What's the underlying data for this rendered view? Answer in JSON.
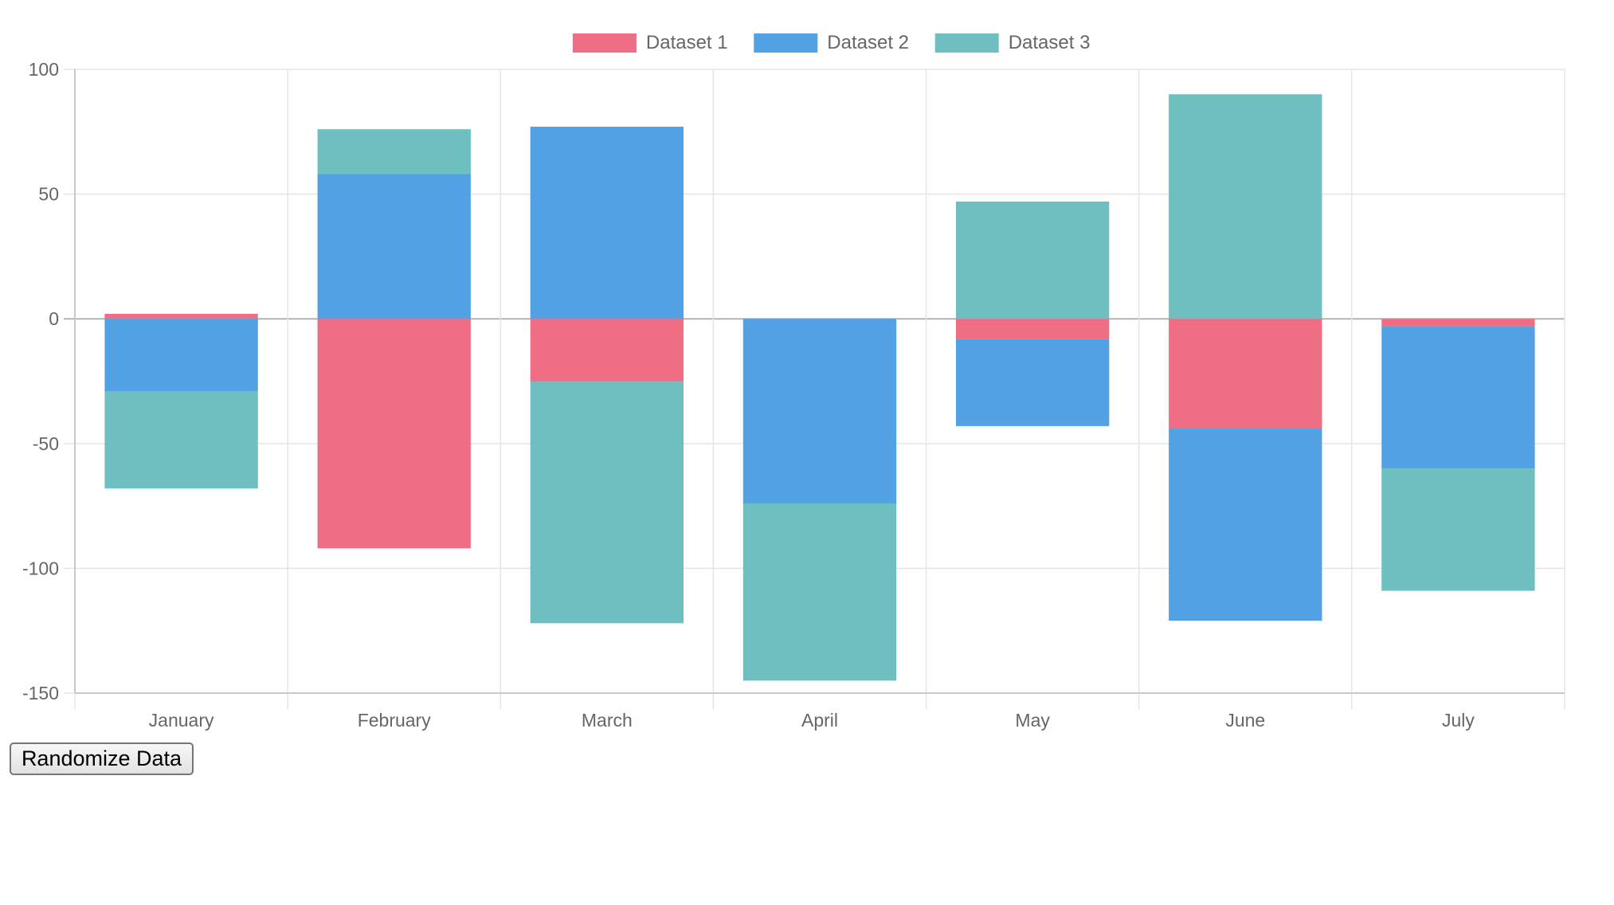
{
  "button": {
    "randomize_label": "Randomize Data"
  },
  "colors": {
    "dataset1": "#f06e84",
    "dataset2": "#52a1e5",
    "dataset3": "#6ebfbf",
    "grid": "#e5e5e5",
    "zero": "#b3b3b3",
    "ticks": "#666666"
  },
  "chart_data": {
    "type": "bar",
    "stacked": true,
    "title": "",
    "xlabel": "",
    "ylabel": "",
    "categories": [
      "January",
      "February",
      "March",
      "April",
      "May",
      "June",
      "July"
    ],
    "series": [
      {
        "name": "Dataset 1",
        "values": [
          2,
          -92,
          -25,
          0,
          -8,
          -44,
          -3
        ]
      },
      {
        "name": "Dataset 2",
        "values": [
          -29,
          58,
          77,
          -74,
          -35,
          -77,
          -57
        ]
      },
      {
        "name": "Dataset 3",
        "values": [
          -39,
          18,
          -97,
          -71,
          47,
          90,
          -49
        ]
      }
    ],
    "ylim": [
      -150,
      100
    ],
    "yticks": [
      100,
      50,
      0,
      -50,
      -100,
      -150
    ],
    "grid": true,
    "legend": "top-center"
  }
}
